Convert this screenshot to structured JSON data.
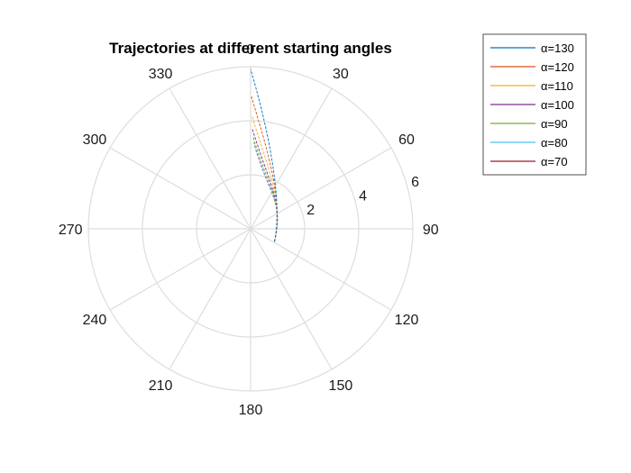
{
  "chart_data": {
    "type": "line",
    "coordinate_system": "polar",
    "title": "Trajectories at different starting angles",
    "theta_direction": "clockwise",
    "theta_zero_location": "top",
    "theta_ticks": [
      0,
      30,
      60,
      90,
      120,
      150,
      180,
      210,
      240,
      270,
      300,
      330
    ],
    "theta_tick_labels": [
      "0",
      "30",
      "60",
      "90",
      "120",
      "150",
      "180",
      "210",
      "240",
      "270",
      "300",
      "330"
    ],
    "r_ticks": [
      2,
      4,
      6
    ],
    "r_tick_labels": [
      "2",
      "4",
      "6"
    ],
    "rlim": [
      0,
      6
    ],
    "r_label_angle_deg": 75,
    "grid": true,
    "legend_location": "top-right",
    "series": [
      {
        "name": "α=130",
        "color": "#0072BD",
        "end_r": 5.9,
        "end_theta": 0.0
      },
      {
        "name": "α=120",
        "color": "#D95319",
        "end_r": 4.9,
        "end_theta": 0.3
      },
      {
        "name": "α=110",
        "color": "#EDB120",
        "end_r": 4.2,
        "end_theta": 0.6
      },
      {
        "name": "α=100",
        "color": "#7E2F8E",
        "end_r": 3.7,
        "end_theta": 1.0
      },
      {
        "name": "α=90",
        "color": "#77AC30",
        "end_r": 3.4,
        "end_theta": 1.5
      },
      {
        "name": "α=80",
        "color": "#4DBEEE",
        "end_r": 3.2,
        "end_theta": 2.0
      },
      {
        "name": "α=70",
        "color": "#A2142F",
        "end_r": 3.1,
        "end_theta": 2.6
      }
    ],
    "start_point": {
      "r": 1.0,
      "theta": 118
    }
  }
}
